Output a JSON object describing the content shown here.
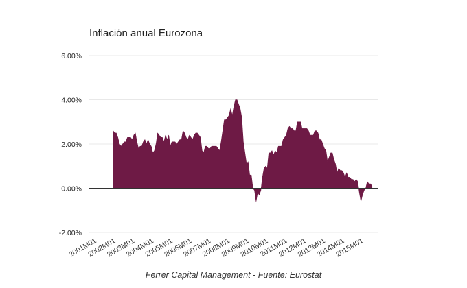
{
  "chart_data": {
    "type": "area",
    "title": "Inflación anual Eurozona",
    "source": "Ferrer Capital Management - Fuente: Eurostat",
    "xlabel": "",
    "ylabel": "",
    "ylim": [
      -2,
      6
    ],
    "xlim": [
      "2000M10",
      "2015M12"
    ],
    "y_ticks": [
      -2,
      0,
      2,
      4,
      6
    ],
    "y_tick_labels": [
      "-2.00%",
      "0.00%",
      "2.00%",
      "4.00%",
      "6.00%"
    ],
    "x_tick_labels": [
      "2001M01",
      "2002M01",
      "2003M01",
      "2004M01",
      "2005M01",
      "2006M01",
      "2007M01",
      "2008M01",
      "2009M01",
      "2010M01",
      "2011M01",
      "2012M01",
      "2013M01",
      "2014M01",
      "2015M01"
    ],
    "gridlines": true,
    "series": [
      {
        "name": "Inflación anual",
        "color": "#6e1a45",
        "points": [
          [
            "2002M01",
            2.6
          ],
          [
            "2002M02",
            2.5
          ],
          [
            "2002M03",
            2.5
          ],
          [
            "2002M04",
            2.3
          ],
          [
            "2002M05",
            2.0
          ],
          [
            "2002M06",
            1.9
          ],
          [
            "2002M07",
            2.0
          ],
          [
            "2002M08",
            2.1
          ],
          [
            "2002M09",
            2.1
          ],
          [
            "2002M10",
            2.3
          ],
          [
            "2002M11",
            2.3
          ],
          [
            "2002M12",
            2.3
          ],
          [
            "2003M01",
            2.2
          ],
          [
            "2003M02",
            2.4
          ],
          [
            "2003M03",
            2.5
          ],
          [
            "2003M04",
            2.1
          ],
          [
            "2003M05",
            1.8
          ],
          [
            "2003M06",
            1.9
          ],
          [
            "2003M07",
            1.9
          ],
          [
            "2003M08",
            2.1
          ],
          [
            "2003M09",
            2.2
          ],
          [
            "2003M10",
            2.0
          ],
          [
            "2003M11",
            2.2
          ],
          [
            "2003M12",
            2.0
          ],
          [
            "2004M01",
            1.9
          ],
          [
            "2004M02",
            1.6
          ],
          [
            "2004M03",
            1.7
          ],
          [
            "2004M04",
            2.0
          ],
          [
            "2004M05",
            2.5
          ],
          [
            "2004M06",
            2.4
          ],
          [
            "2004M07",
            2.3
          ],
          [
            "2004M08",
            2.3
          ],
          [
            "2004M09",
            2.1
          ],
          [
            "2004M10",
            2.4
          ],
          [
            "2004M11",
            2.2
          ],
          [
            "2004M12",
            2.4
          ],
          [
            "2005M01",
            1.9
          ],
          [
            "2005M02",
            2.1
          ],
          [
            "2005M03",
            2.1
          ],
          [
            "2005M04",
            2.1
          ],
          [
            "2005M05",
            2.0
          ],
          [
            "2005M06",
            2.1
          ],
          [
            "2005M07",
            2.2
          ],
          [
            "2005M08",
            2.2
          ],
          [
            "2005M09",
            2.6
          ],
          [
            "2005M10",
            2.5
          ],
          [
            "2005M11",
            2.3
          ],
          [
            "2005M12",
            2.2
          ],
          [
            "2006M01",
            2.4
          ],
          [
            "2006M02",
            2.3
          ],
          [
            "2006M03",
            2.2
          ],
          [
            "2006M04",
            2.4
          ],
          [
            "2006M05",
            2.5
          ],
          [
            "2006M06",
            2.5
          ],
          [
            "2006M07",
            2.4
          ],
          [
            "2006M08",
            2.3
          ],
          [
            "2006M09",
            1.7
          ],
          [
            "2006M10",
            1.6
          ],
          [
            "2006M11",
            1.9
          ],
          [
            "2006M12",
            1.9
          ],
          [
            "2007M01",
            1.8
          ],
          [
            "2007M02",
            1.8
          ],
          [
            "2007M03",
            1.9
          ],
          [
            "2007M04",
            1.9
          ],
          [
            "2007M05",
            1.9
          ],
          [
            "2007M06",
            1.9
          ],
          [
            "2007M07",
            1.8
          ],
          [
            "2007M08",
            1.7
          ],
          [
            "2007M09",
            2.1
          ],
          [
            "2007M10",
            2.6
          ],
          [
            "2007M11",
            3.1
          ],
          [
            "2007M12",
            3.1
          ],
          [
            "2008M01",
            3.2
          ],
          [
            "2008M02",
            3.3
          ],
          [
            "2008M03",
            3.6
          ],
          [
            "2008M04",
            3.3
          ],
          [
            "2008M05",
            3.7
          ],
          [
            "2008M06",
            4.0
          ],
          [
            "2008M07",
            4.0
          ],
          [
            "2008M08",
            3.8
          ],
          [
            "2008M09",
            3.6
          ],
          [
            "2008M10",
            3.2
          ],
          [
            "2008M11",
            2.1
          ],
          [
            "2008M12",
            1.6
          ],
          [
            "2009M01",
            1.1
          ],
          [
            "2009M02",
            1.2
          ],
          [
            "2009M03",
            0.6
          ],
          [
            "2009M04",
            0.6
          ],
          [
            "2009M05",
            0.0
          ],
          [
            "2009M06",
            -0.1
          ],
          [
            "2009M07",
            -0.6
          ],
          [
            "2009M08",
            -0.2
          ],
          [
            "2009M09",
            -0.3
          ],
          [
            "2009M10",
            -0.1
          ],
          [
            "2009M11",
            0.5
          ],
          [
            "2009M12",
            0.9
          ],
          [
            "2010M01",
            1.0
          ],
          [
            "2010M02",
            0.9
          ],
          [
            "2010M03",
            1.6
          ],
          [
            "2010M04",
            1.6
          ],
          [
            "2010M05",
            1.7
          ],
          [
            "2010M06",
            1.5
          ],
          [
            "2010M07",
            1.7
          ],
          [
            "2010M08",
            1.6
          ],
          [
            "2010M09",
            1.9
          ],
          [
            "2010M10",
            1.9
          ],
          [
            "2010M11",
            1.9
          ],
          [
            "2010M12",
            2.2
          ],
          [
            "2011M01",
            2.3
          ],
          [
            "2011M02",
            2.4
          ],
          [
            "2011M03",
            2.7
          ],
          [
            "2011M04",
            2.8
          ],
          [
            "2011M05",
            2.7
          ],
          [
            "2011M06",
            2.7
          ],
          [
            "2011M07",
            2.6
          ],
          [
            "2011M08",
            2.6
          ],
          [
            "2011M09",
            3.0
          ],
          [
            "2011M10",
            3.0
          ],
          [
            "2011M11",
            3.0
          ],
          [
            "2011M12",
            2.7
          ],
          [
            "2012M01",
            2.7
          ],
          [
            "2012M02",
            2.7
          ],
          [
            "2012M03",
            2.7
          ],
          [
            "2012M04",
            2.6
          ],
          [
            "2012M05",
            2.4
          ],
          [
            "2012M06",
            2.4
          ],
          [
            "2012M07",
            2.4
          ],
          [
            "2012M08",
            2.6
          ],
          [
            "2012M09",
            2.6
          ],
          [
            "2012M10",
            2.5
          ],
          [
            "2012M11",
            2.2
          ],
          [
            "2012M12",
            2.2
          ],
          [
            "2013M01",
            2.0
          ],
          [
            "2013M02",
            1.8
          ],
          [
            "2013M03",
            1.7
          ],
          [
            "2013M04",
            1.2
          ],
          [
            "2013M05",
            1.4
          ],
          [
            "2013M06",
            1.6
          ],
          [
            "2013M07",
            1.6
          ],
          [
            "2013M08",
            1.3
          ],
          [
            "2013M09",
            1.1
          ],
          [
            "2013M10",
            0.7
          ],
          [
            "2013M11",
            0.9
          ],
          [
            "2013M12",
            0.8
          ],
          [
            "2014M01",
            0.8
          ],
          [
            "2014M02",
            0.7
          ],
          [
            "2014M03",
            0.5
          ],
          [
            "2014M04",
            0.7
          ],
          [
            "2014M05",
            0.5
          ],
          [
            "2014M06",
            0.5
          ],
          [
            "2014M07",
            0.4
          ],
          [
            "2014M08",
            0.4
          ],
          [
            "2014M09",
            0.3
          ],
          [
            "2014M10",
            0.4
          ],
          [
            "2014M11",
            0.3
          ],
          [
            "2014M12",
            -0.2
          ],
          [
            "2015M01",
            -0.6
          ],
          [
            "2015M02",
            -0.3
          ],
          [
            "2015M03",
            -0.1
          ],
          [
            "2015M04",
            0.0
          ],
          [
            "2015M05",
            0.3
          ],
          [
            "2015M06",
            0.2
          ],
          [
            "2015M07",
            0.2
          ],
          [
            "2015M08",
            0.1
          ]
        ]
      }
    ]
  }
}
